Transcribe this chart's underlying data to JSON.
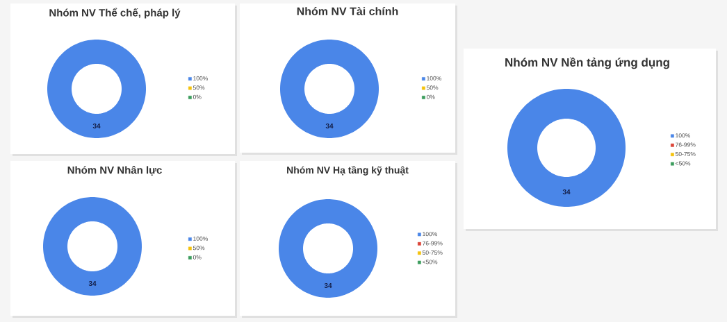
{
  "chart_data": [
    {
      "type": "donut",
      "title": "Nhóm NV Thể chế, pháp lý",
      "categories": [
        "100%",
        "50%",
        "0%"
      ],
      "values": [
        34,
        0,
        0
      ],
      "colors": [
        "#4a86e8",
        "#f4c20d",
        "#3c9d5d"
      ],
      "value_labels": [
        "34",
        null,
        null
      ],
      "legend": "right"
    },
    {
      "type": "donut",
      "title": "Nhóm NV Tài chính",
      "categories": [
        "100%",
        "50%",
        "0%"
      ],
      "values": [
        34,
        0,
        0
      ],
      "colors": [
        "#4a86e8",
        "#f4c20d",
        "#3c9d5d"
      ],
      "value_labels": [
        "34",
        null,
        null
      ],
      "legend": "right"
    },
    {
      "type": "donut",
      "title": "Nhóm NV Nền tảng ứng dụng",
      "categories": [
        "100%",
        "76-99%",
        "50-75%",
        "<50%"
      ],
      "values": [
        34,
        0,
        0,
        0
      ],
      "colors": [
        "#4a86e8",
        "#db4437",
        "#f4c20d",
        "#3c9d5d"
      ],
      "value_labels": [
        "34",
        null,
        null,
        null
      ],
      "legend": "right"
    },
    {
      "type": "donut",
      "title": "Nhóm NV Nhân lực",
      "categories": [
        "100%",
        "50%",
        "0%"
      ],
      "values": [
        34,
        0,
        0
      ],
      "colors": [
        "#4a86e8",
        "#f4c20d",
        "#3c9d5d"
      ],
      "value_labels": [
        "34",
        null,
        null
      ],
      "legend": "right"
    },
    {
      "type": "donut",
      "title": "Nhóm NV Hạ tầng kỹ thuật",
      "categories": [
        "100%",
        "76-99%",
        "50-75%",
        "<50%"
      ],
      "values": [
        34,
        0,
        0,
        0
      ],
      "colors": [
        "#4a86e8",
        "#db4437",
        "#f4c20d",
        "#3c9d5d"
      ],
      "value_labels": [
        "34",
        null,
        null,
        null
      ],
      "legend": "right"
    }
  ]
}
